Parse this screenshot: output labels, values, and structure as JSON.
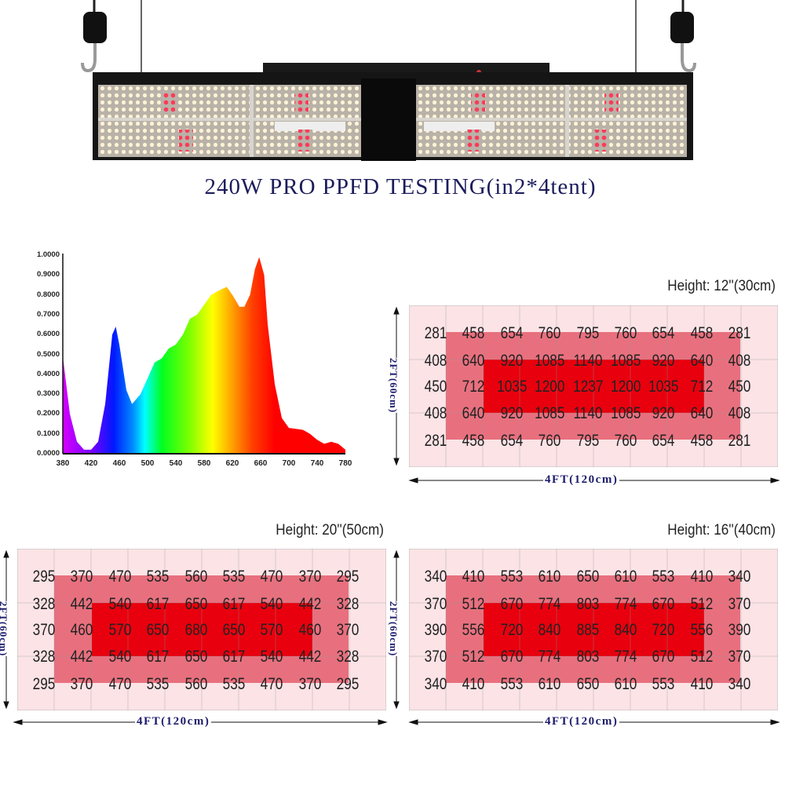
{
  "title": "240W  PRO PPFD TESTING(in2*4tent)",
  "colors": {
    "title": "#1c1c5c",
    "outer_zone": "#fbe3e6",
    "middle_zone": "#e8707e",
    "inner_zone": "#e8000e"
  },
  "chart_data": [
    {
      "type": "area",
      "title": "",
      "xlabel": "",
      "ylabel": "",
      "xlim": [
        380,
        780
      ],
      "ylim": [
        0,
        1
      ],
      "x_ticks": [
        "380",
        "420",
        "460",
        "500",
        "540",
        "580",
        "620",
        "660",
        "700",
        "740",
        "780"
      ],
      "y_ticks": [
        "0.0000",
        "0.1000",
        "0.2000",
        "0.3000",
        "0.4000",
        "0.5000",
        "0.6000",
        "0.7000",
        "0.8000",
        "0.9000",
        "1.0000"
      ],
      "fill": "rainbow spectrum gradient",
      "x": [
        380,
        390,
        400,
        410,
        420,
        430,
        440,
        450,
        455,
        460,
        470,
        478,
        490,
        500,
        510,
        520,
        530,
        540,
        550,
        560,
        570,
        580,
        590,
        600,
        612,
        620,
        630,
        637,
        645,
        652,
        658,
        665,
        670,
        680,
        690,
        700,
        720,
        730,
        740,
        750,
        760,
        770,
        780
      ],
      "y": [
        0.49,
        0.2,
        0.06,
        0.02,
        0.02,
        0.06,
        0.25,
        0.6,
        0.64,
        0.55,
        0.32,
        0.25,
        0.3,
        0.38,
        0.46,
        0.48,
        0.53,
        0.55,
        0.6,
        0.68,
        0.7,
        0.75,
        0.8,
        0.82,
        0.84,
        0.8,
        0.74,
        0.74,
        0.8,
        0.93,
        0.99,
        0.9,
        0.65,
        0.35,
        0.18,
        0.13,
        0.12,
        0.1,
        0.07,
        0.05,
        0.06,
        0.05,
        0.02
      ]
    },
    {
      "type": "heatmap",
      "title": "Height: 12''(30cm)",
      "xlabel": "4FT(120cm)",
      "ylabel": "2FT(60cm)",
      "values": [
        [
          "281",
          "458",
          "654",
          "760",
          "795",
          "760",
          "654",
          "458",
          "281"
        ],
        [
          "408",
          "640",
          "920",
          "1085",
          "1140",
          "1085",
          "920",
          "640",
          "408"
        ],
        [
          "450",
          "712",
          "1035",
          "1200",
          "1237",
          "1200",
          "1035",
          "712",
          "450"
        ],
        [
          "408",
          "640",
          "920",
          "1085",
          "1140",
          "1085",
          "920",
          "640",
          "408"
        ],
        [
          "281",
          "458",
          "654",
          "760",
          "795",
          "760",
          "654",
          "458",
          "281"
        ]
      ]
    },
    {
      "type": "heatmap",
      "title": "Height: 20''(50cm)",
      "xlabel": "4FT(120cm)",
      "ylabel": "2FT(60cm)",
      "values": [
        [
          "295",
          "370",
          "470",
          "535",
          "560",
          "535",
          "470",
          "370",
          "295"
        ],
        [
          "328",
          "442",
          "540",
          "617",
          "650",
          "617",
          "540",
          "442",
          "328"
        ],
        [
          "370",
          "460",
          "570",
          "650",
          "680",
          "650",
          "570",
          "460",
          "370"
        ],
        [
          "328",
          "442",
          "540",
          "617",
          "650",
          "617",
          "540",
          "442",
          "328"
        ],
        [
          "295",
          "370",
          "470",
          "535",
          "560",
          "535",
          "470",
          "370",
          "295"
        ]
      ]
    },
    {
      "type": "heatmap",
      "title": "Height: 16''(40cm)",
      "xlabel": "4FT(120cm)",
      "ylabel": "2FT(60cm)",
      "values": [
        [
          "340",
          "410",
          "553",
          "610",
          "650",
          "610",
          "553",
          "410",
          "340"
        ],
        [
          "370",
          "512",
          "670",
          "774",
          "803",
          "774",
          "670",
          "512",
          "370"
        ],
        [
          "390",
          "556",
          "720",
          "840",
          "885",
          "840",
          "720",
          "556",
          "390"
        ],
        [
          "370",
          "512",
          "670",
          "774",
          "803",
          "774",
          "670",
          "512",
          "370"
        ],
        [
          "340",
          "410",
          "553",
          "610",
          "650",
          "610",
          "553",
          "410",
          "340"
        ]
      ]
    }
  ]
}
